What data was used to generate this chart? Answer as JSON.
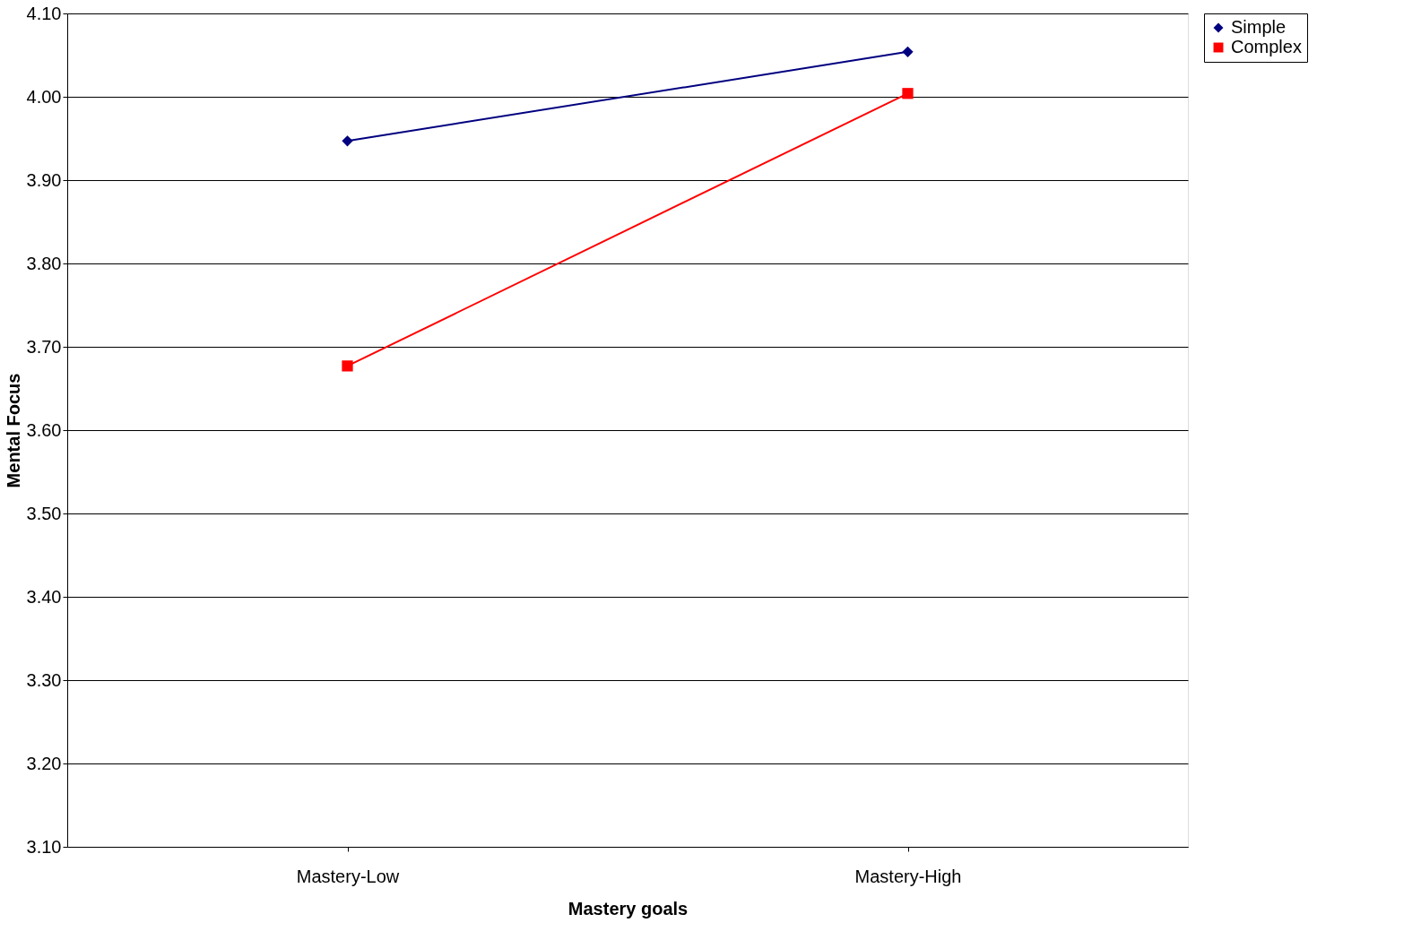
{
  "chart_data": {
    "type": "line",
    "xlabel": "Mastery goals",
    "ylabel": "Mental Focus",
    "categories": [
      "Mastery-Low",
      "Mastery-High"
    ],
    "series": [
      {
        "name": "Simple",
        "color": "#000080",
        "marker": "diamond",
        "values": [
          3.947,
          4.054
        ]
      },
      {
        "name": "Complex",
        "color": "#ff0000",
        "marker": "square",
        "values": [
          3.677,
          4.004
        ]
      }
    ],
    "ylim": [
      3.1,
      4.1
    ],
    "yticks": [
      {
        "value": 3.1,
        "label": "3.10"
      },
      {
        "value": 3.2,
        "label": "3.20"
      },
      {
        "value": 3.3,
        "label": "3.30"
      },
      {
        "value": 3.4,
        "label": "3.40"
      },
      {
        "value": 3.5,
        "label": "3.50"
      },
      {
        "value": 3.6,
        "label": "3.60"
      },
      {
        "value": 3.7,
        "label": "3.70"
      },
      {
        "value": 3.8,
        "label": "3.80"
      },
      {
        "value": 3.9,
        "label": "3.90"
      },
      {
        "value": 4.0,
        "label": "4.00"
      },
      {
        "value": 4.1,
        "label": "4.10"
      }
    ],
    "grid": "y",
    "legend": "right",
    "line_style": "solid"
  }
}
